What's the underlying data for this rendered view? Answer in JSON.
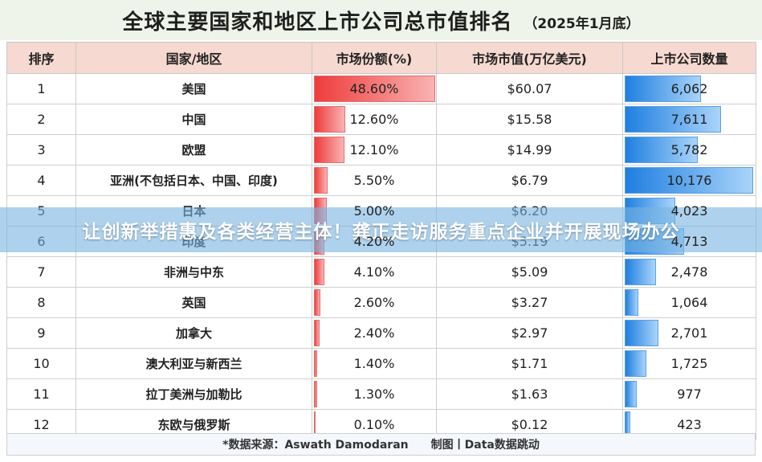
{
  "title": {
    "main": "全球主要国家和地区上市公司总市值排名",
    "sub": "（2025年1月底）"
  },
  "headers": [
    "排序",
    "国家/地区",
    "市场份额(%)",
    "市场市值(万亿美元)",
    "上市公司数量"
  ],
  "chart_data": {
    "type": "table",
    "columns": [
      "排序",
      "国家/地区",
      "市场份额(%)",
      "市场市值(万亿美元)",
      "上市公司数量"
    ],
    "rows": [
      {
        "rank": "1",
        "region": "美国",
        "share": 48.6,
        "share_label": "48.60%",
        "value_label": "$60.07",
        "count": 6062,
        "count_label": "6,062"
      },
      {
        "rank": "2",
        "region": "中国",
        "share": 12.6,
        "share_label": "12.60%",
        "value_label": "$15.58",
        "count": 7611,
        "count_label": "7,611"
      },
      {
        "rank": "3",
        "region": "欧盟",
        "share": 12.1,
        "share_label": "12.10%",
        "value_label": "$14.99",
        "count": 5782,
        "count_label": "5,782"
      },
      {
        "rank": "4",
        "region": "亚洲(不包括日本、中国、印度)",
        "share": 5.5,
        "share_label": "5.50%",
        "value_label": "$6.79",
        "count": 10176,
        "count_label": "10,176"
      },
      {
        "rank": "5",
        "region": "日本",
        "share": 5.0,
        "share_label": "5.00%",
        "value_label": "$6.20",
        "count": 4023,
        "count_label": "4,023"
      },
      {
        "rank": "6",
        "region": "印度",
        "share": 4.2,
        "share_label": "4.20%",
        "value_label": "$5.19",
        "count": 4713,
        "count_label": "4,713"
      },
      {
        "rank": "7",
        "region": "非洲与中东",
        "share": 4.1,
        "share_label": "4.10%",
        "value_label": "$5.09",
        "count": 2478,
        "count_label": "2,478"
      },
      {
        "rank": "8",
        "region": "英国",
        "share": 2.6,
        "share_label": "2.60%",
        "value_label": "$3.27",
        "count": 1064,
        "count_label": "1,064"
      },
      {
        "rank": "9",
        "region": "加拿大",
        "share": 2.4,
        "share_label": "2.40%",
        "value_label": "$2.97",
        "count": 2701,
        "count_label": "2,701"
      },
      {
        "rank": "10",
        "region": "澳大利亚与新西兰",
        "share": 1.4,
        "share_label": "1.40%",
        "value_label": "$1.71",
        "count": 1725,
        "count_label": "1,725"
      },
      {
        "rank": "11",
        "region": "拉丁美洲与加勒比",
        "share": 1.3,
        "share_label": "1.30%",
        "value_label": "$1.63",
        "count": 977,
        "count_label": "977"
      },
      {
        "rank": "12",
        "region": "东欧与俄罗斯",
        "share": 0.1,
        "share_label": "0.10%",
        "value_label": "$0.12",
        "count": 423,
        "count_label": "423"
      }
    ],
    "colors": {
      "share_bar": "#ef3b3b",
      "count_bar": "#1f7fe0",
      "header_bg": "#f6d9d0"
    }
  },
  "footer": {
    "source": "*数据来源：Aswath Damodaran",
    "maker": "制图丨Data数据跳动"
  },
  "banner": "让创新举措惠及各类经营主体！龚正走访服务重点企业并开展现场办公"
}
